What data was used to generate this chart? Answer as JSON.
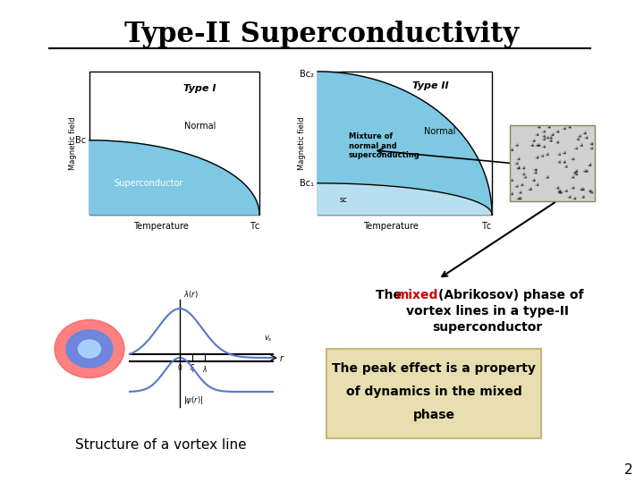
{
  "title": "Type-II Superconductivity",
  "title_fontsize": 22,
  "bg_color": "#ffffff",
  "slide_number": "2",
  "type1_label": "Type I",
  "type1_xlabel": "Temperature",
  "type1_xc_label": "Tᴄ",
  "type1_ylabel": "Magnetic field",
  "type1_bc_label": "Bᴄ",
  "type1_normal_label": "Normal",
  "type1_sc_label": "Superconductor",
  "type1_fill_color": "#7ec8e3",
  "type2_label": "Type II",
  "type2_xlabel": "Temperature",
  "type2_xc_label": "Tᴄ",
  "type2_ylabel": "Magnetic field",
  "type2_bc2_label": "Bᴄ₂",
  "type2_bc1_label": "Bᴄ₁",
  "type2_normal_label": "Normal",
  "type2_mixed_label": "Mixture of\nnormal and\nsuperconducting",
  "type2_sc_label": "sc",
  "type2_fill_mixed_color": "#7ec8e3",
  "type2_fill_lower_color": "#b8dff0",
  "mixed_text_black": "(Abrikosov) phase of\nvortex lines in a type-II\nsuperconductor",
  "mixed_text_red": "mixed",
  "mixed_text_prefix": "The ",
  "peak_effect_text": "The peak effect is a property\nof dynamics in the mixed\nphase",
  "peak_box_color": "#e8deb0",
  "peak_box_edge": "#c8b87a",
  "vortex_text": "Structure of a vortex line",
  "text_color": "#000000",
  "red_color": "#cc0000"
}
